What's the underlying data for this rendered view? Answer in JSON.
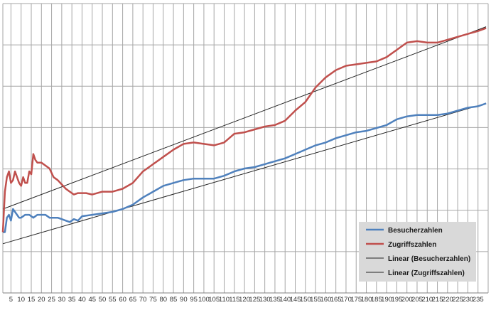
{
  "chart_data": {
    "type": "line",
    "title": "",
    "xlabel": "",
    "ylabel": "",
    "xlim": [
      1,
      240
    ],
    "ylim": [
      0,
      100
    ],
    "grid": true,
    "legend_position": "bottom-right",
    "x_tick_labels": [
      "5",
      "10",
      "15",
      "20",
      "25",
      "30",
      "35",
      "40",
      "45",
      "50",
      "55",
      "60",
      "65",
      "70",
      "75",
      "80",
      "85",
      "90",
      "95",
      "100",
      "105",
      "110",
      "115",
      "120",
      "125",
      "130",
      "135",
      "140",
      "145",
      "150",
      "155",
      "160",
      "165",
      "170",
      "175",
      "180",
      "185",
      "190",
      "195",
      "200",
      "205",
      "210",
      "215",
      "220",
      "225",
      "230",
      "235"
    ],
    "series": [
      {
        "name": "Besucherzahlen",
        "color": "#4f81bd",
        "style": "data",
        "points": [
          [
            1,
            21
          ],
          [
            2,
            21
          ],
          [
            3,
            26
          ],
          [
            4,
            27
          ],
          [
            5,
            25
          ],
          [
            6,
            29
          ],
          [
            7,
            28
          ],
          [
            8,
            27
          ],
          [
            9,
            26
          ],
          [
            10,
            26
          ],
          [
            12,
            27
          ],
          [
            14,
            27
          ],
          [
            16,
            26
          ],
          [
            18,
            27
          ],
          [
            20,
            27
          ],
          [
            22,
            27
          ],
          [
            24,
            26
          ],
          [
            26,
            26
          ],
          [
            28,
            26
          ],
          [
            30,
            25.5
          ],
          [
            32,
            25
          ],
          [
            34,
            24.5
          ],
          [
            36,
            25.5
          ],
          [
            38,
            25
          ],
          [
            40,
            26.5
          ],
          [
            45,
            27
          ],
          [
            50,
            27.5
          ],
          [
            55,
            28
          ],
          [
            60,
            29
          ],
          [
            65,
            30.5
          ],
          [
            70,
            33
          ],
          [
            75,
            35
          ],
          [
            80,
            37
          ],
          [
            85,
            38
          ],
          [
            90,
            39
          ],
          [
            95,
            39.5
          ],
          [
            100,
            39.5
          ],
          [
            105,
            39.5
          ],
          [
            110,
            40.5
          ],
          [
            115,
            42
          ],
          [
            120,
            43
          ],
          [
            125,
            43.5
          ],
          [
            130,
            44.5
          ],
          [
            135,
            45.5
          ],
          [
            140,
            46.5
          ],
          [
            145,
            48
          ],
          [
            150,
            49.5
          ],
          [
            155,
            51
          ],
          [
            160,
            52
          ],
          [
            165,
            53.5
          ],
          [
            170,
            54.5
          ],
          [
            175,
            55.5
          ],
          [
            180,
            56
          ],
          [
            185,
            57
          ],
          [
            190,
            58
          ],
          [
            195,
            60
          ],
          [
            200,
            61
          ],
          [
            205,
            61.5
          ],
          [
            210,
            61.5
          ],
          [
            215,
            61.5
          ],
          [
            220,
            62
          ],
          [
            225,
            63
          ],
          [
            230,
            64
          ],
          [
            235,
            64.5
          ],
          [
            239,
            65.5
          ]
        ]
      },
      {
        "name": "Zugriffszahlen",
        "color": "#c0504d",
        "style": "data",
        "points": [
          [
            1,
            21
          ],
          [
            2,
            35
          ],
          [
            3,
            40
          ],
          [
            4,
            42
          ],
          [
            5,
            38
          ],
          [
            6,
            39
          ],
          [
            7,
            42
          ],
          [
            8,
            40
          ],
          [
            9,
            38
          ],
          [
            10,
            37
          ],
          [
            11,
            40
          ],
          [
            12,
            38
          ],
          [
            13,
            38
          ],
          [
            14,
            42
          ],
          [
            15,
            41
          ],
          [
            16,
            48
          ],
          [
            17,
            46
          ],
          [
            18,
            45
          ],
          [
            20,
            45
          ],
          [
            22,
            44
          ],
          [
            24,
            43
          ],
          [
            26,
            40
          ],
          [
            28,
            39
          ],
          [
            30,
            37.5
          ],
          [
            32,
            36
          ],
          [
            34,
            35
          ],
          [
            36,
            34
          ],
          [
            38,
            34.5
          ],
          [
            40,
            34.5
          ],
          [
            42,
            34.5
          ],
          [
            45,
            34
          ],
          [
            50,
            35
          ],
          [
            55,
            35
          ],
          [
            60,
            36
          ],
          [
            65,
            38
          ],
          [
            70,
            42
          ],
          [
            75,
            44.5
          ],
          [
            80,
            47
          ],
          [
            85,
            49.5
          ],
          [
            90,
            51.5
          ],
          [
            95,
            52
          ],
          [
            100,
            51.5
          ],
          [
            105,
            51
          ],
          [
            110,
            52
          ],
          [
            115,
            55
          ],
          [
            120,
            55.5
          ],
          [
            125,
            56.5
          ],
          [
            130,
            57.5
          ],
          [
            135,
            58
          ],
          [
            140,
            59.5
          ],
          [
            145,
            63
          ],
          [
            150,
            66
          ],
          [
            155,
            71
          ],
          [
            160,
            74.5
          ],
          [
            165,
            77
          ],
          [
            170,
            78.5
          ],
          [
            175,
            79
          ],
          [
            180,
            79.5
          ],
          [
            185,
            80
          ],
          [
            190,
            81.5
          ],
          [
            195,
            84
          ],
          [
            200,
            86.5
          ],
          [
            205,
            87
          ],
          [
            210,
            86.5
          ],
          [
            215,
            86.5
          ],
          [
            220,
            87.5
          ],
          [
            225,
            88.5
          ],
          [
            230,
            89.5
          ],
          [
            235,
            90.5
          ],
          [
            239,
            91.5
          ]
        ]
      },
      {
        "name": "Linear (Besucherzahlen)",
        "color": "#222222",
        "style": "trend",
        "points": [
          [
            1,
            17
          ],
          [
            239,
            65.5
          ]
        ]
      },
      {
        "name": "Linear (Zugriffszahlen)",
        "color": "#222222",
        "style": "trend",
        "points": [
          [
            1,
            29
          ],
          [
            239,
            92
          ]
        ]
      }
    ]
  }
}
